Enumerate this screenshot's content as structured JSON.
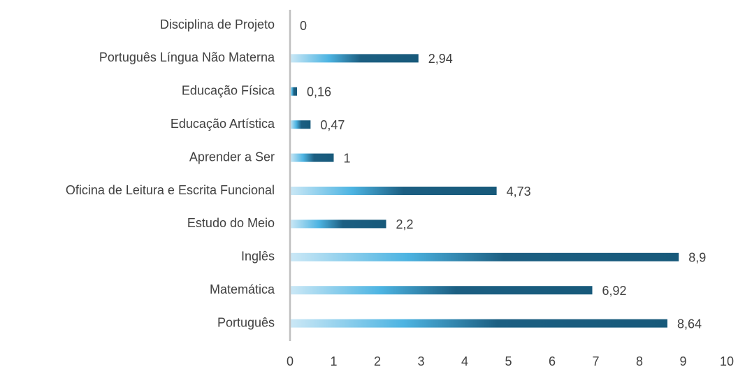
{
  "chart_data": {
    "type": "hbar",
    "categories": [
      "Disciplina de Projeto",
      "Português Língua Não Materna",
      "Educação Física",
      "Educação Artística",
      "Aprender a Ser",
      "Oficina de Leitura e Escrita Funcional",
      "Estudo do Meio",
      "Inglês",
      "Matemática",
      "Português"
    ],
    "values": [
      0,
      2.94,
      0.16,
      0.47,
      1,
      4.73,
      2.2,
      8.9,
      6.92,
      8.64
    ],
    "value_labels": [
      "0",
      "2,94",
      "0,16",
      "0,47",
      "1",
      "4,73",
      "2,2",
      "8,9",
      "6,92",
      "8,64"
    ],
    "color": "#1b5e80",
    "xlim": [
      0,
      10
    ],
    "xticks": [
      0,
      1,
      2,
      3,
      4,
      5,
      6,
      7,
      8,
      9,
      10
    ],
    "grid": false
  }
}
